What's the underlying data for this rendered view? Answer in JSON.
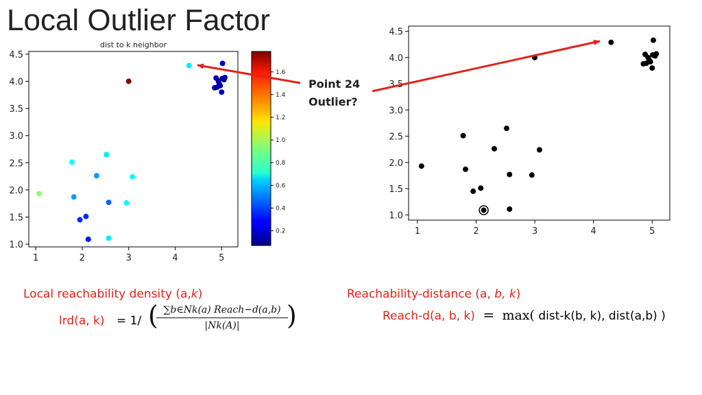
{
  "slide": {
    "title": "Local Outlier Factor",
    "annotation_line1": "Point 24",
    "annotation_line2": "Outlier?"
  },
  "formulas": {
    "lrd_heading": "Local reachability density (a,",
    "lrd_heading_k": "k",
    "lrd_heading_close": ")",
    "lrd_lhs": "lrd(a, k)",
    "lrd_eq": "= 1/",
    "lrd_numerator": "∑b∈Nk(a) Reach−d(a,b)",
    "lrd_denominator": "|Nk(A)|",
    "reach_heading": "Reachability-distance (a,",
    "reach_heading_vars": "b, k",
    "reach_heading_close": ")",
    "reach_lhs": "Reach-d(a, b, k)",
    "reach_eq": "=",
    "reach_rhs_max": "max(",
    "reach_rhs": " dist-k(b, k), dist(a,b) )"
  },
  "colors": {
    "arrow": "#e0221a",
    "text_red": "#e0221a"
  },
  "chart_data": [
    {
      "type": "scatter",
      "title": "dist to k neighbor",
      "xlim": [
        0.85,
        5.35
      ],
      "ylim": [
        0.95,
        4.55
      ],
      "xticks": [
        1,
        2,
        3,
        4,
        5
      ],
      "yticks": [
        1.0,
        1.5,
        2.0,
        2.5,
        3.0,
        3.5,
        4.0,
        4.5
      ],
      "colorbar": {
        "range": [
          0.07,
          1.78
        ],
        "ticks": [
          0.2,
          0.4,
          0.6,
          0.8,
          1.0,
          1.2,
          1.4,
          1.6
        ],
        "colormap": "jet"
      },
      "points": [
        {
          "x": 1.07,
          "y": 1.93,
          "c": 0.95
        },
        {
          "x": 1.78,
          "y": 2.51,
          "c": 0.72
        },
        {
          "x": 1.82,
          "y": 1.87,
          "c": 0.55
        },
        {
          "x": 1.95,
          "y": 1.45,
          "c": 0.35
        },
        {
          "x": 2.08,
          "y": 1.51,
          "c": 0.35
        },
        {
          "x": 2.13,
          "y": 1.09,
          "c": 0.32
        },
        {
          "x": 2.31,
          "y": 2.26,
          "c": 0.55
        },
        {
          "x": 2.52,
          "y": 2.65,
          "c": 0.68
        },
        {
          "x": 2.57,
          "y": 1.77,
          "c": 0.45
        },
        {
          "x": 2.57,
          "y": 1.11,
          "c": 0.68
        },
        {
          "x": 2.95,
          "y": 1.76,
          "c": 0.72
        },
        {
          "x": 3.08,
          "y": 2.24,
          "c": 0.72
        },
        {
          "x": 3.0,
          "y": 4.0,
          "c": 1.78
        },
        {
          "x": 4.3,
          "y": 4.29,
          "c": 0.68
        },
        {
          "x": 4.88,
          "y": 4.06,
          "c": 0.15
        },
        {
          "x": 4.93,
          "y": 4.0,
          "c": 0.12
        },
        {
          "x": 4.97,
          "y": 3.92,
          "c": 0.15
        },
        {
          "x": 5.02,
          "y": 4.33,
          "c": 0.2
        },
        {
          "x": 5.01,
          "y": 4.05,
          "c": 0.1
        },
        {
          "x": 5.05,
          "y": 4.03,
          "c": 0.12
        },
        {
          "x": 4.95,
          "y": 3.95,
          "c": 0.13
        },
        {
          "x": 5.07,
          "y": 4.07,
          "c": 0.12
        },
        {
          "x": 4.9,
          "y": 3.89,
          "c": 0.14
        },
        {
          "x": 5.0,
          "y": 3.8,
          "c": 0.17
        },
        {
          "x": 4.85,
          "y": 3.88,
          "c": 0.14
        }
      ]
    },
    {
      "type": "scatter",
      "title": "",
      "xlim": [
        0.85,
        5.3
      ],
      "ylim": [
        0.9,
        4.6
      ],
      "xticks": [
        1,
        2,
        3,
        4,
        5
      ],
      "yticks": [
        1.0,
        1.5,
        2.0,
        2.5,
        3.0,
        3.5,
        4.0,
        4.5
      ],
      "highlighted_point": {
        "x": 2.13,
        "y": 1.09
      },
      "points": [
        {
          "x": 1.07,
          "y": 1.93
        },
        {
          "x": 1.78,
          "y": 2.51
        },
        {
          "x": 1.82,
          "y": 1.87
        },
        {
          "x": 1.95,
          "y": 1.45
        },
        {
          "x": 2.08,
          "y": 1.51
        },
        {
          "x": 2.13,
          "y": 1.09
        },
        {
          "x": 2.31,
          "y": 2.26
        },
        {
          "x": 2.52,
          "y": 2.65
        },
        {
          "x": 2.57,
          "y": 1.77
        },
        {
          "x": 2.57,
          "y": 1.11
        },
        {
          "x": 2.95,
          "y": 1.76
        },
        {
          "x": 3.08,
          "y": 2.24
        },
        {
          "x": 3.0,
          "y": 4.0
        },
        {
          "x": 4.3,
          "y": 4.29
        },
        {
          "x": 4.88,
          "y": 4.06
        },
        {
          "x": 4.93,
          "y": 4.0
        },
        {
          "x": 4.97,
          "y": 3.92
        },
        {
          "x": 5.02,
          "y": 4.33
        },
        {
          "x": 5.01,
          "y": 4.05
        },
        {
          "x": 5.05,
          "y": 4.03
        },
        {
          "x": 4.95,
          "y": 3.95
        },
        {
          "x": 5.07,
          "y": 4.07
        },
        {
          "x": 4.9,
          "y": 3.89
        },
        {
          "x": 5.0,
          "y": 3.8
        },
        {
          "x": 4.85,
          "y": 3.88
        }
      ]
    }
  ]
}
